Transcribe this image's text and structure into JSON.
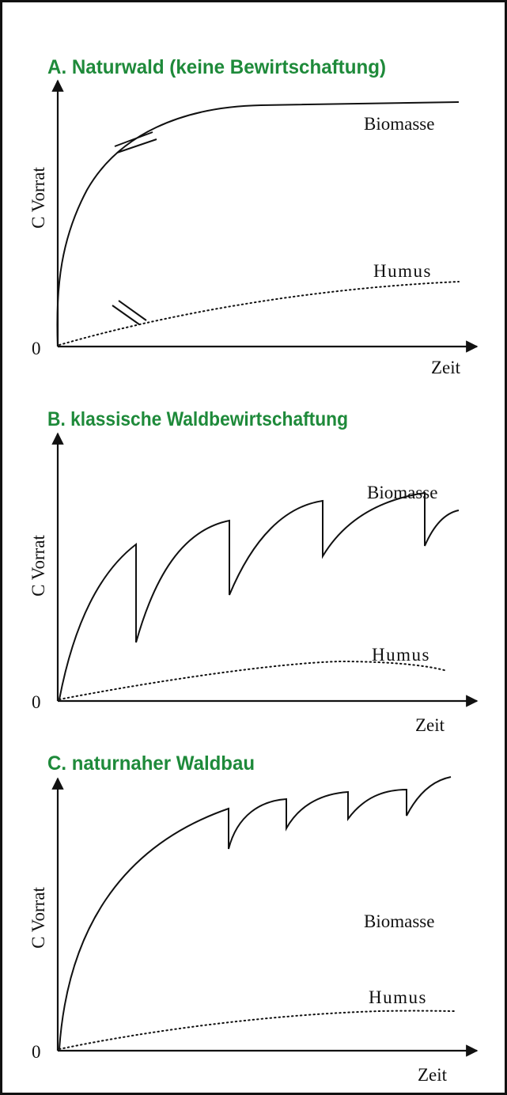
{
  "panels": [
    {
      "title": "A. Naturwald (keine Bewirtschaftung)",
      "y_label": "C Vorrat",
      "origin": "0",
      "x_label": "Zeit",
      "curves": [
        "Biomasse",
        "Humus"
      ]
    },
    {
      "title": "B. klassische Waldbewirtschaftung",
      "y_label": "C Vorrat",
      "origin": "0",
      "x_label": "Zeit",
      "curves": [
        "Biomasse",
        "Humus"
      ]
    },
    {
      "title": "C. naturnaher Waldbau",
      "y_label": "C Vorrat",
      "origin": "0",
      "x_label": "Zeit",
      "curves": [
        "Biomasse",
        "Humus"
      ]
    }
  ]
}
